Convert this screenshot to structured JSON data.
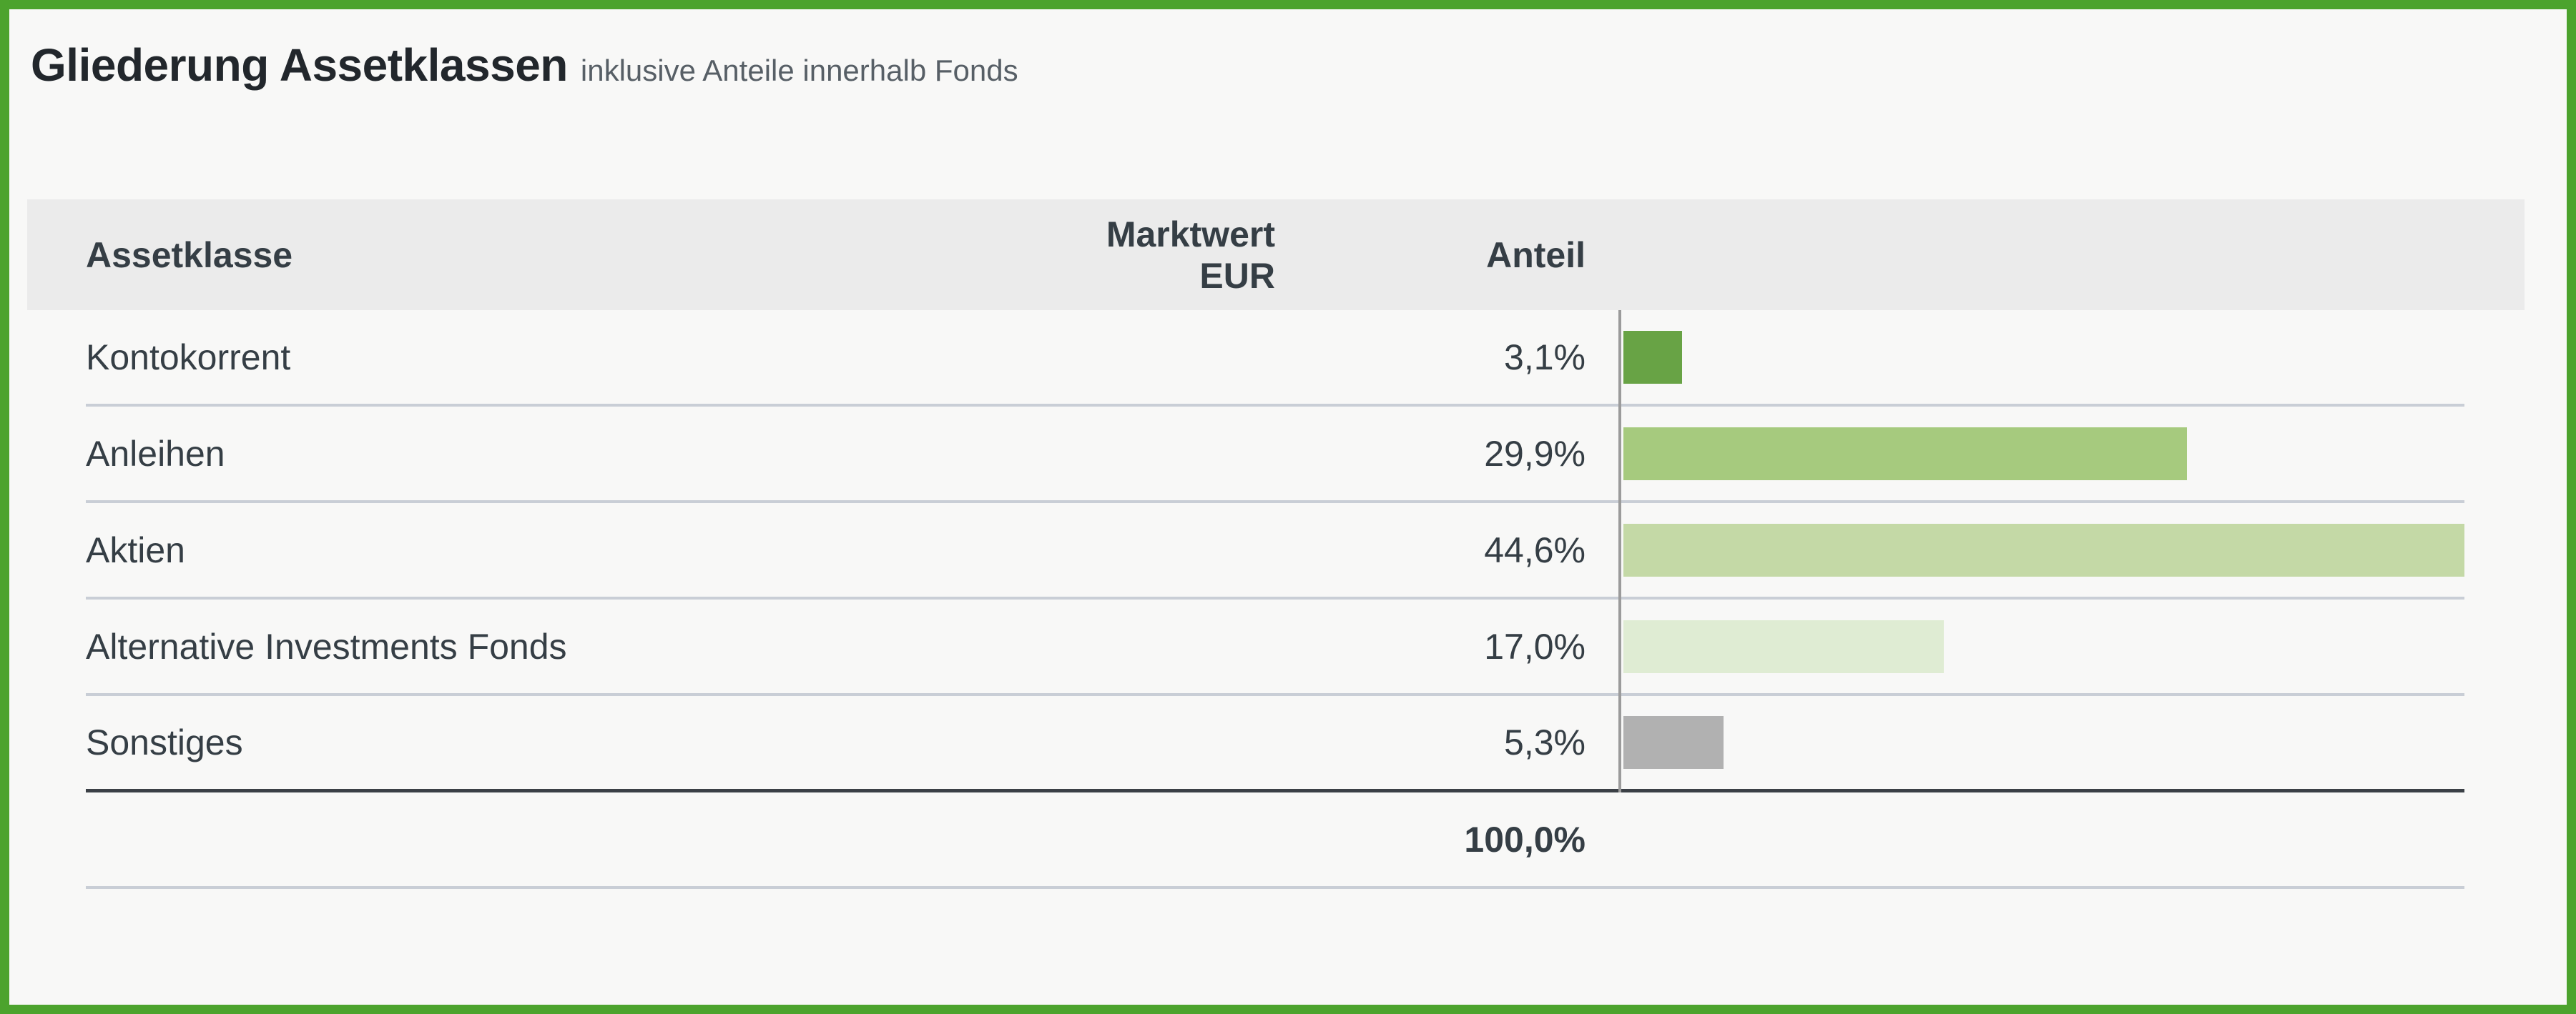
{
  "page": {
    "title": "Gliederung Assetklassen",
    "subtitle": "inklusive Anteile innerhalb Fonds",
    "accent_border_color": "#4ca32d",
    "background_color": "#f8f8f7",
    "header_band_color": "#ebebeb"
  },
  "table": {
    "columns": {
      "assetklasse": "Assetklasse",
      "marktwert": "Marktwert EUR",
      "anteil": "Anteil"
    },
    "rows": [
      {
        "assetklasse": "Kontokorrent",
        "marktwert_eur": "",
        "anteil": "3,1%",
        "anteil_value": 3.1,
        "bar_color": "#68a345"
      },
      {
        "assetklasse": "Anleihen",
        "marktwert_eur": "",
        "anteil": "29,9%",
        "anteil_value": 29.9,
        "bar_color": "#a6ca7e"
      },
      {
        "assetklasse": "Aktien",
        "marktwert_eur": "",
        "anteil": "44,6%",
        "anteil_value": 44.6,
        "bar_color": "#c4d9a6"
      },
      {
        "assetklasse": "Alternative Investments Fonds",
        "marktwert_eur": "",
        "anteil": "17,0%",
        "anteil_value": 17.0,
        "bar_color": "#dfecd3"
      },
      {
        "assetklasse": "Sonstiges",
        "marktwert_eur": "",
        "anteil": "5,3%",
        "anteil_value": 5.3,
        "bar_color": "#b1b1b1"
      }
    ],
    "total": {
      "anteil": "100,0%"
    }
  },
  "chart_data": {
    "type": "bar",
    "orientation": "horizontal",
    "title": "Gliederung Assetklassen",
    "subtitle": "inklusive Anteile innerhalb Fonds",
    "categories": [
      "Kontokorrent",
      "Anleihen",
      "Aktien",
      "Alternative Investments Fonds",
      "Sonstiges"
    ],
    "values": [
      3.1,
      29.9,
      44.6,
      17.0,
      5.3
    ],
    "value_labels": [
      "3,1%",
      "29,9%",
      "44,6%",
      "17,0%",
      "5,3%"
    ],
    "bar_colors": [
      "#68a345",
      "#a6ca7e",
      "#c4d9a6",
      "#dfecd3",
      "#b1b1b1"
    ],
    "total_value": 100.0,
    "total_label": "100,0%",
    "xlabel": "Anteil",
    "xlim": [
      0,
      44.6
    ],
    "grid": false,
    "legend": false
  }
}
